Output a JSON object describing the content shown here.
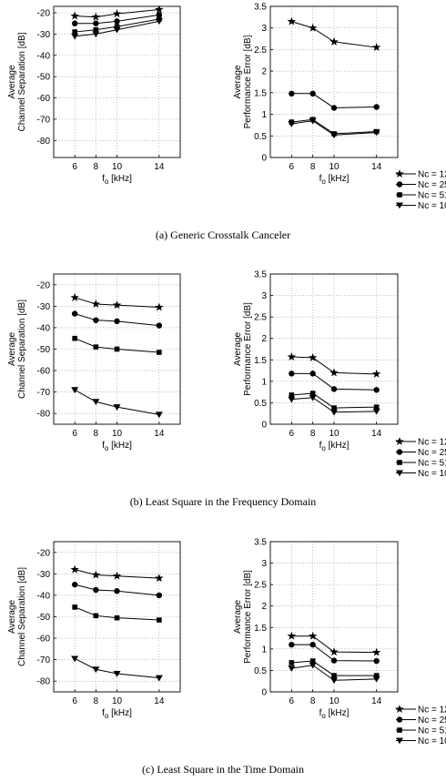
{
  "chart_data": [
    {
      "type": "line",
      "group": 0,
      "side": "left",
      "ylabel": [
        "Average",
        "Channel Separation [dB]"
      ],
      "xlabel": "f_o [kHz]",
      "ylim": [
        -88,
        -17
      ],
      "yticks": [
        -20,
        -30,
        -40,
        -50,
        -60,
        -70,
        -80
      ],
      "x": [
        6,
        8,
        10,
        14
      ],
      "xticklabels": [
        "6",
        "8",
        "10",
        "14"
      ],
      "grid": true,
      "series": [
        {
          "marker": "star",
          "values": [
            -21.5,
            -22,
            -20.5,
            -18.5
          ]
        },
        {
          "marker": "circle",
          "values": [
            -25,
            -25,
            -24,
            -21
          ]
        },
        {
          "marker": "square",
          "values": [
            -29,
            -28,
            -26.5,
            -23
          ]
        },
        {
          "marker": "triangle-down",
          "values": [
            -31,
            -30,
            -28,
            -24
          ]
        }
      ]
    },
    {
      "type": "line",
      "group": 0,
      "side": "right",
      "ylabel": [
        "Average",
        "Performance Error [dB]"
      ],
      "xlabel": "f_o [kHz]",
      "ylim": [
        0,
        3.5
      ],
      "yticks": [
        0,
        0.5,
        1,
        1.5,
        2,
        2.5,
        3,
        3.5
      ],
      "x": [
        6,
        8,
        10,
        14
      ],
      "xticklabels": [
        "6",
        "8",
        "10",
        "14"
      ],
      "grid": true,
      "legend": [
        "Nc = 128",
        "Nc = 256",
        "Nc = 512",
        "Nc = 1024"
      ],
      "series": [
        {
          "name": "Nc = 128",
          "marker": "star",
          "values": [
            3.15,
            3.0,
            2.68,
            2.55
          ]
        },
        {
          "name": "Nc = 256",
          "marker": "circle",
          "values": [
            1.48,
            1.48,
            1.15,
            1.17
          ]
        },
        {
          "name": "Nc = 512",
          "marker": "square",
          "values": [
            0.82,
            0.88,
            0.55,
            0.6
          ]
        },
        {
          "name": "Nc = 1024",
          "marker": "triangle-down",
          "values": [
            0.78,
            0.85,
            0.52,
            0.58
          ]
        }
      ]
    },
    {
      "type": "line",
      "group": 1,
      "side": "left",
      "ylabel": [
        "Average",
        "Channel Separation [dB]"
      ],
      "xlabel": "f_o [kHz]",
      "ylim": [
        -85,
        -15
      ],
      "yticks": [
        -20,
        -30,
        -40,
        -50,
        -60,
        -70,
        -80
      ],
      "x": [
        6,
        8,
        10,
        14
      ],
      "xticklabels": [
        "6",
        "8",
        "10",
        "14"
      ],
      "grid": true,
      "series": [
        {
          "marker": "star",
          "values": [
            -26,
            -29,
            -29.5,
            -30.5
          ]
        },
        {
          "marker": "circle",
          "values": [
            -33.5,
            -36.5,
            -37,
            -39
          ]
        },
        {
          "marker": "square",
          "values": [
            -45,
            -49,
            -50,
            -51.5
          ]
        },
        {
          "marker": "triangle-down",
          "values": [
            -69,
            -74.5,
            -77,
            -80.5
          ]
        }
      ]
    },
    {
      "type": "line",
      "group": 1,
      "side": "right",
      "ylabel": [
        "Average",
        "Performance Error [dB]"
      ],
      "xlabel": "f_o [kHz]",
      "ylim": [
        0,
        3.5
      ],
      "yticks": [
        0,
        0.5,
        1,
        1.5,
        2,
        2.5,
        3,
        3.5
      ],
      "x": [
        6,
        8,
        10,
        14
      ],
      "xticklabels": [
        "6",
        "8",
        "10",
        "14"
      ],
      "grid": true,
      "legend": [
        "Nc = 128",
        "Nc = 256",
        "Nc = 512",
        "Nc = 1024"
      ],
      "series": [
        {
          "name": "Nc = 128",
          "marker": "star",
          "values": [
            1.57,
            1.55,
            1.2,
            1.17
          ]
        },
        {
          "name": "Nc = 256",
          "marker": "circle",
          "values": [
            1.18,
            1.18,
            0.82,
            0.8
          ]
        },
        {
          "name": "Nc = 512",
          "marker": "square",
          "values": [
            0.68,
            0.72,
            0.38,
            0.4
          ]
        },
        {
          "name": "Nc = 1024",
          "marker": "triangle-down",
          "values": [
            0.58,
            0.62,
            0.28,
            0.3
          ]
        }
      ]
    },
    {
      "type": "line",
      "group": 2,
      "side": "left",
      "ylabel": [
        "Average",
        "Channel Separation [dB]"
      ],
      "xlabel": "f_o [kHz]",
      "ylim": [
        -85,
        -15
      ],
      "yticks": [
        -20,
        -30,
        -40,
        -50,
        -60,
        -70,
        -80
      ],
      "x": [
        6,
        8,
        10,
        14
      ],
      "xticklabels": [
        "6",
        "8",
        "10",
        "14"
      ],
      "grid": true,
      "series": [
        {
          "marker": "star",
          "values": [
            -28,
            -30.5,
            -31,
            -32
          ]
        },
        {
          "marker": "circle",
          "values": [
            -35,
            -37.5,
            -38,
            -40
          ]
        },
        {
          "marker": "square",
          "values": [
            -45.5,
            -49.5,
            -50.5,
            -51.5
          ]
        },
        {
          "marker": "triangle-down",
          "values": [
            -69.5,
            -74.5,
            -76.5,
            -78.5
          ]
        }
      ]
    },
    {
      "type": "line",
      "group": 2,
      "side": "right",
      "ylabel": [
        "Average",
        "Performance Error [dB]"
      ],
      "xlabel": "f_o [kHz]",
      "ylim": [
        0,
        3.5
      ],
      "yticks": [
        0,
        0.5,
        1,
        1.5,
        2,
        2.5,
        3,
        3.5
      ],
      "x": [
        6,
        8,
        10,
        14
      ],
      "xticklabels": [
        "6",
        "8",
        "10",
        "14"
      ],
      "grid": true,
      "legend": [
        "Nc = 128",
        "Nc = 256",
        "Nc = 512",
        "Nc = 1024"
      ],
      "series": [
        {
          "name": "Nc = 128",
          "marker": "star",
          "values": [
            1.3,
            1.3,
            0.93,
            0.92
          ]
        },
        {
          "name": "Nc = 256",
          "marker": "circle",
          "values": [
            1.1,
            1.1,
            0.73,
            0.72
          ]
        },
        {
          "name": "Nc = 512",
          "marker": "square",
          "values": [
            0.68,
            0.72,
            0.38,
            0.38
          ]
        },
        {
          "name": "Nc = 1024",
          "marker": "triangle-down",
          "values": [
            0.55,
            0.62,
            0.27,
            0.3
          ]
        }
      ]
    }
  ],
  "captions": [
    "(a)  Generic Crosstalk Canceler",
    "(b)  Least Square in the Frequency Domain",
    "(c)  Least Square in the Time Domain"
  ]
}
